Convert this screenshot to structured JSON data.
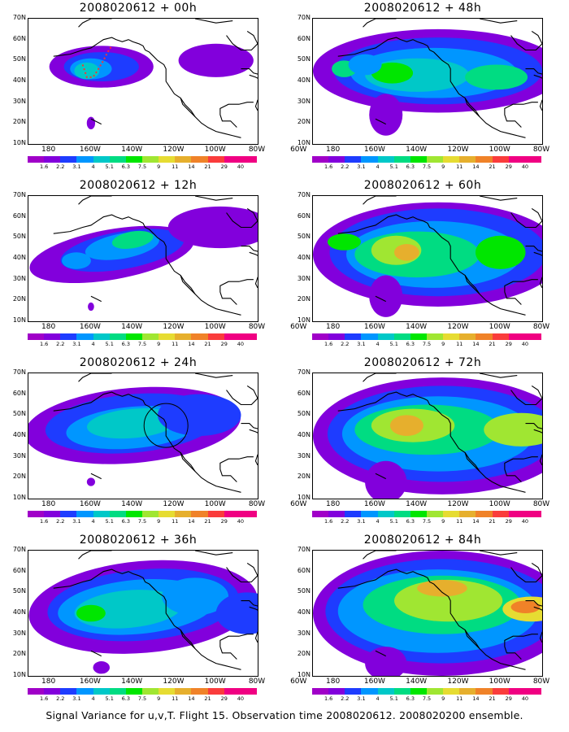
{
  "panels": [
    {
      "title": "2008020612 + 00h"
    },
    {
      "title": "2008020612 + 12h"
    },
    {
      "title": "2008020612 + 24h"
    },
    {
      "title": "2008020612 + 36h"
    },
    {
      "title": "2008020612 + 48h"
    },
    {
      "title": "2008020612 + 60h"
    },
    {
      "title": "2008020612 + 72h"
    },
    {
      "title": "2008020612 + 84h"
    }
  ],
  "axes": {
    "lat_labels": [
      "70N",
      "60N",
      "50N",
      "40N",
      "30N",
      "20N",
      "10N"
    ],
    "lon_labels": [
      "180",
      "160W",
      "140W",
      "120W",
      "100W",
      "80W",
      "60W"
    ]
  },
  "colorbar": {
    "labels": [
      "1.6",
      "2.2",
      "3.1",
      "4",
      "5.1",
      "6.3",
      "7.5",
      "9",
      "11",
      "14",
      "21",
      "29",
      "40"
    ],
    "colors": [
      "#a000c8",
      "#8200dc",
      "#1e3cff",
      "#0096ff",
      "#00c8c8",
      "#00dc82",
      "#00e600",
      "#a0e632",
      "#e6dc32",
      "#e6af2d",
      "#f08228",
      "#fa3c3c",
      "#f00082"
    ]
  },
  "caption": "Signal Variance for u,v,T. Flight 15. Observation time 2008020612. 2008020200 ensemble.",
  "icons": [
    "coastline",
    "flight-track",
    "target-circle"
  ]
}
